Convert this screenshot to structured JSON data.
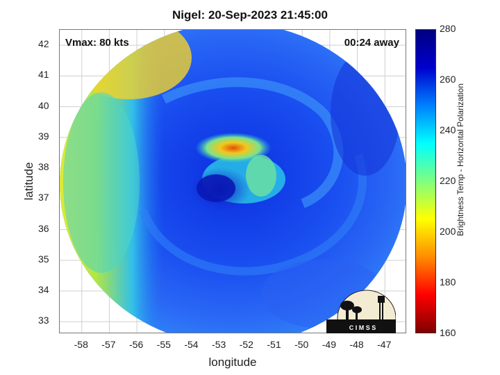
{
  "title": "Nigel: 20-Sep-2023 21:45:00",
  "vmax": "Vmax: 80 kts",
  "away": "00:24 away",
  "logo_text": "C I M S S",
  "map": {
    "x_axis": {
      "label": "longitude",
      "ticks": [
        "-58",
        "-57",
        "-56",
        "-55",
        "-54",
        "-53",
        "-52",
        "-51",
        "-50",
        "-49",
        "-48",
        "-47"
      ],
      "range": [
        -58.8,
        -46.2
      ]
    },
    "y_axis": {
      "label": "latitude",
      "ticks": [
        "42",
        "41",
        "40",
        "39",
        "38",
        "37",
        "36",
        "35",
        "34",
        "33"
      ],
      "range": [
        32.6,
        42.5
      ]
    },
    "grid": true,
    "swath": "circular microwave swath centered near -52.6, 37.6",
    "colorbar": {
      "label": "Brightness Temp - Horizontal Polarization",
      "ticks": [
        "280",
        "260",
        "240",
        "220",
        "200",
        "180",
        "160"
      ],
      "range": [
        160,
        280
      ],
      "colors": [
        "#7f0000",
        "#ff0000",
        "#ff8c00",
        "#ffff00",
        "#7fff7f",
        "#00ffff",
        "#0080ff",
        "#0000cd",
        "#00007f"
      ]
    }
  }
}
